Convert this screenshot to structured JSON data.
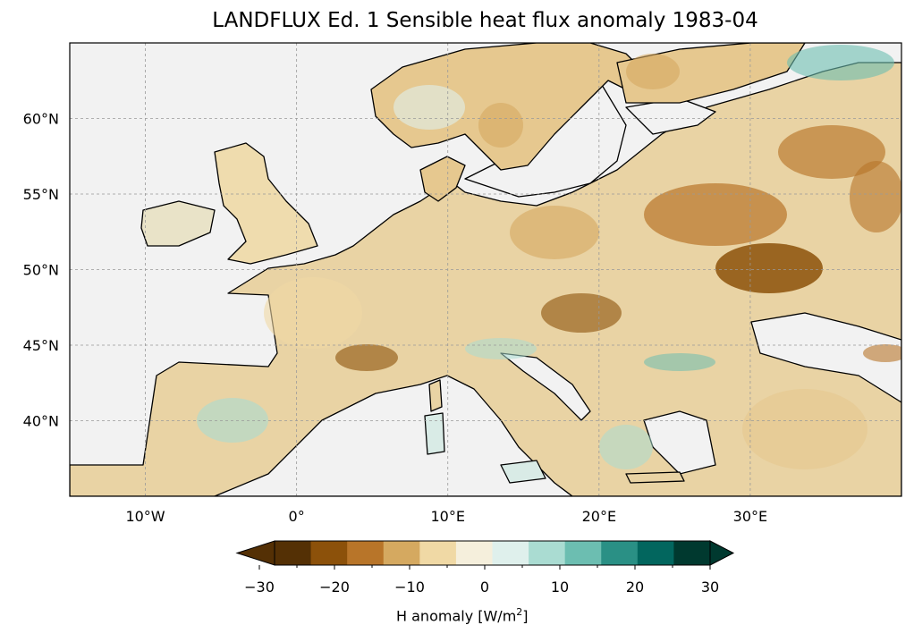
{
  "title": "LANDFLUX Ed. 1 Sensible heat flux anomaly 1983-04",
  "map": {
    "lon_range": [
      -15,
      40
    ],
    "lat_range": [
      35,
      65
    ],
    "lon_ticks": [
      {
        "value": -10,
        "label": "10°W"
      },
      {
        "value": 0,
        "label": "0°"
      },
      {
        "value": 10,
        "label": "10°E"
      },
      {
        "value": 20,
        "label": "20°E"
      },
      {
        "value": 30,
        "label": "30°E"
      }
    ],
    "lat_ticks": [
      {
        "value": 60,
        "label": "60°N"
      },
      {
        "value": 55,
        "label": "55°N"
      },
      {
        "value": 50,
        "label": "50°N"
      },
      {
        "value": 45,
        "label": "45°N"
      },
      {
        "value": 40,
        "label": "40°N"
      }
    ],
    "gridlines": true,
    "ocean_color": "#f2f2f2",
    "coastline_color": "#000000"
  },
  "colorbar": {
    "label_main": "H anomaly [W/m",
    "label_sup": "2",
    "label_end": "]",
    "min": -30,
    "max": 30,
    "ticks": [
      "−30",
      "−20",
      "−10",
      "0",
      "10",
      "20",
      "30"
    ],
    "colors": [
      "#543005",
      "#8c510a",
      "#b87529",
      "#d5a960",
      "#f0d9a5",
      "#f5efdc",
      "#dff0ec",
      "#aadcd2",
      "#6cbeb1",
      "#2a9085",
      "#02665e",
      "#00392f"
    ],
    "extend": "both"
  }
}
